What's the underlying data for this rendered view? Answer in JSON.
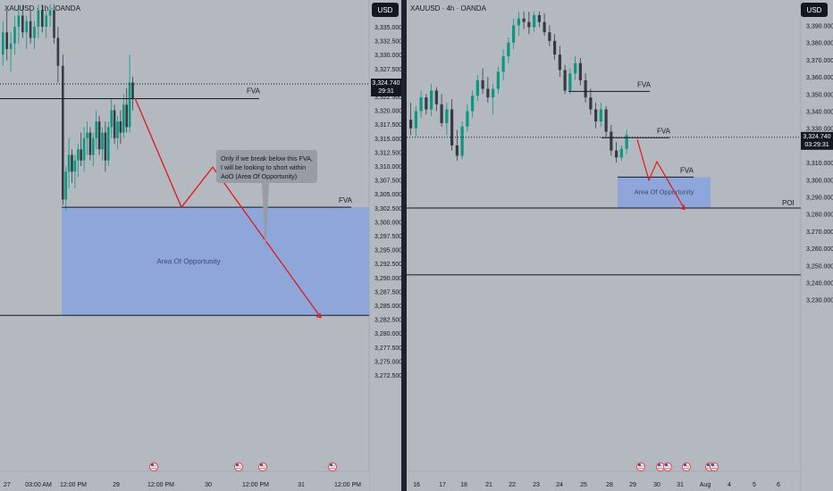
{
  "colors": {
    "background": "#b4b8bf",
    "panel_divider": "#1e222d",
    "candle_up": "#089981",
    "candle_down": "#363a45",
    "axis_text": "#131722",
    "price_badge": "#131722",
    "zone_fill": "#8fa6db",
    "projection": "#e0191f",
    "callout_fill": "#979ca5",
    "event_marker": "#e05561"
  },
  "left_chart": {
    "header": "XAUUSD · 1h · OANDA",
    "currency": "USD",
    "price_axis": [
      "3,335.000",
      "3,332.500",
      "3,330.000",
      "3,327.500",
      "3,325.000",
      "3,322.500",
      "3,320.000",
      "3,317.500",
      "3,315.000",
      "3,312.500",
      "3,310.000",
      "3,307.500",
      "3,305.000",
      "3,302.500",
      "3,300.000",
      "3,297.500",
      "3,295.000",
      "3,292.500",
      "3,290.000",
      "3,287.500",
      "3,285.000",
      "3,282.500",
      "3,280.000",
      "3,277.500",
      "3,275.000",
      "3,272.500"
    ],
    "time_axis": [
      "27",
      "03:00 AM",
      "12:00 PM",
      "29",
      "12:00 PM",
      "30",
      "12:00 PM",
      "31",
      "12:00 PM"
    ],
    "current_price": "3,324.740",
    "countdown": "29:31",
    "fva_label_top": "FVA",
    "fva_label_bottom": "FVA",
    "zone_label": "Area Of Opportunity",
    "callout": [
      "Only if we break below this FVA,",
      "I will be looking to short within",
      "AoO (Area Of Opportunity)"
    ],
    "event_icon": "us-flag-icon"
  },
  "right_chart": {
    "header": "XAUUSD · 4h · OANDA",
    "currency": "USD",
    "price_axis": [
      "3,390.000",
      "3,380.000",
      "3,370.000",
      "3,360.000",
      "3,350.000",
      "3,340.000",
      "3,330.000",
      "3,320.000",
      "3,310.000",
      "3,300.000",
      "3,290.000",
      "3,280.000",
      "3,270.000",
      "3,260.000",
      "3,250.000",
      "3,240.000",
      "3,230.000"
    ],
    "time_axis": [
      "16",
      "17",
      "18",
      "21",
      "22",
      "23",
      "24",
      "25",
      "28",
      "29",
      "30",
      "31",
      "Aug",
      "4",
      "5",
      "6"
    ],
    "current_price": "3,324.740",
    "countdown": "03:29:31",
    "fva_labels": [
      "FVA",
      "FVA",
      "FVA"
    ],
    "zone_label": "Area Of Opportunity",
    "poi_label": "POI",
    "event_icon": "us-flag-icon"
  },
  "chart_data": [
    {
      "type": "candlestick",
      "title": "XAUUSD · 1h · OANDA",
      "ylim": [
        3271,
        3339
      ],
      "levels": {
        "fva_upper": 3322.1,
        "fva_lower": 3302.6,
        "zone_top": 3302.6,
        "zone_bottom": 3283.2,
        "current_price": 3324.74
      },
      "ohlc": [
        [
          3330,
          3336,
          3328,
          3334
        ],
        [
          3334,
          3338,
          3329,
          3331
        ],
        [
          3331,
          3334,
          3327,
          3332
        ],
        [
          3332,
          3337,
          3330,
          3335
        ],
        [
          3335,
          3339,
          3332,
          3337
        ],
        [
          3337,
          3339,
          3333,
          3334
        ],
        [
          3334,
          3337,
          3331,
          3336
        ],
        [
          3336,
          3338,
          3332,
          3333
        ],
        [
          3333,
          3336,
          3331,
          3335
        ],
        [
          3335,
          3339,
          3333,
          3338
        ],
        [
          3338,
          3339,
          3334,
          3335
        ],
        [
          3335,
          3338,
          3333,
          3337
        ],
        [
          3337,
          3339,
          3335,
          3338
        ],
        [
          3338,
          3339,
          3332,
          3333
        ],
        [
          3333,
          3335,
          3325,
          3328
        ],
        [
          3328,
          3330,
          3303,
          3304
        ],
        [
          3304,
          3310,
          3302,
          3309
        ],
        [
          3309,
          3315,
          3306,
          3312
        ],
        [
          3312,
          3313,
          3307,
          3309
        ],
        [
          3309,
          3312,
          3306,
          3311
        ],
        [
          3311,
          3314,
          3308,
          3313
        ],
        [
          3313,
          3316,
          3310,
          3311
        ],
        [
          3311,
          3317,
          3309,
          3315
        ],
        [
          3315,
          3318,
          3312,
          3316
        ],
        [
          3316,
          3317,
          3311,
          3312
        ],
        [
          3312,
          3316,
          3310,
          3315
        ],
        [
          3315,
          3320,
          3313,
          3318
        ],
        [
          3318,
          3319,
          3312,
          3313
        ],
        [
          3313,
          3317,
          3311,
          3316
        ],
        [
          3316,
          3318,
          3309,
          3311
        ],
        [
          3311,
          3318,
          3310,
          3317
        ],
        [
          3317,
          3322,
          3315,
          3320
        ],
        [
          3320,
          3321,
          3314,
          3315
        ],
        [
          3315,
          3319,
          3313,
          3318
        ],
        [
          3318,
          3320,
          3314,
          3316
        ],
        [
          3316,
          3323,
          3315,
          3321
        ],
        [
          3321,
          3324,
          3316,
          3317
        ],
        [
          3317,
          3330,
          3316,
          3325
        ],
        [
          3325,
          3326,
          3320,
          3322
        ]
      ]
    },
    {
      "type": "candlestick",
      "title": "XAUUSD · 4h · OANDA",
      "ylim": [
        3227,
        3398
      ],
      "levels": {
        "fva_1": 3351.5,
        "fva_2": 3324.5,
        "fva_3": 3301.5,
        "poi": 3283.5,
        "lower_line": 3244.5,
        "zone_top": 3301.5,
        "zone_bottom": 3283.5,
        "current_price": 3324.74
      },
      "ohlc": [
        [
          3335,
          3345,
          3326,
          3330
        ],
        [
          3330,
          3343,
          3325,
          3340
        ],
        [
          3340,
          3352,
          3336,
          3348
        ],
        [
          3348,
          3350,
          3338,
          3341
        ],
        [
          3341,
          3356,
          3337,
          3352
        ],
        [
          3352,
          3354,
          3340,
          3344
        ],
        [
          3344,
          3350,
          3331,
          3333
        ],
        [
          3333,
          3345,
          3326,
          3341
        ],
        [
          3341,
          3347,
          3317,
          3320
        ],
        [
          3320,
          3329,
          3311,
          3314
        ],
        [
          3314,
          3334,
          3312,
          3331
        ],
        [
          3331,
          3344,
          3328,
          3340
        ],
        [
          3340,
          3352,
          3336,
          3349
        ],
        [
          3349,
          3361,
          3346,
          3358
        ],
        [
          3358,
          3365,
          3350,
          3353
        ],
        [
          3353,
          3360,
          3345,
          3348
        ],
        [
          3348,
          3356,
          3338,
          3353
        ],
        [
          3353,
          3366,
          3350,
          3363
        ],
        [
          3363,
          3376,
          3358,
          3372
        ],
        [
          3372,
          3383,
          3368,
          3380
        ],
        [
          3380,
          3394,
          3376,
          3390
        ],
        [
          3390,
          3398,
          3384,
          3394
        ],
        [
          3394,
          3398,
          3388,
          3392
        ],
        [
          3392,
          3398,
          3385,
          3389
        ],
        [
          3389,
          3398,
          3386,
          3396
        ],
        [
          3396,
          3398,
          3389,
          3392
        ],
        [
          3392,
          3397,
          3384,
          3386
        ],
        [
          3386,
          3390,
          3378,
          3381
        ],
        [
          3381,
          3385,
          3370,
          3373
        ],
        [
          3373,
          3378,
          3360,
          3364
        ],
        [
          3364,
          3367,
          3350,
          3352
        ],
        [
          3352,
          3365,
          3350,
          3362
        ],
        [
          3362,
          3372,
          3358,
          3368
        ],
        [
          3368,
          3371,
          3355,
          3358
        ],
        [
          3358,
          3362,
          3345,
          3348
        ],
        [
          3348,
          3353,
          3338,
          3341
        ],
        [
          3341,
          3345,
          3330,
          3334
        ],
        [
          3334,
          3345,
          3331,
          3341
        ],
        [
          3341,
          3343,
          3325,
          3328
        ],
        [
          3328,
          3332,
          3314,
          3317
        ],
        [
          3317,
          3322,
          3310,
          3313
        ],
        [
          3313,
          3320,
          3311,
          3318
        ],
        [
          3318,
          3329,
          3315,
          3326
        ]
      ]
    }
  ]
}
